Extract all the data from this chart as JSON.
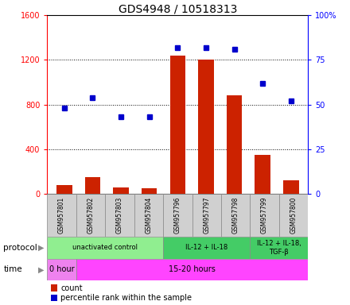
{
  "title": "GDS4948 / 10518313",
  "samples": [
    "GSM957801",
    "GSM957802",
    "GSM957803",
    "GSM957804",
    "GSM957796",
    "GSM957797",
    "GSM957798",
    "GSM957799",
    "GSM957800"
  ],
  "counts": [
    80,
    150,
    60,
    50,
    1240,
    1200,
    880,
    350,
    120
  ],
  "percentile_ranks": [
    48,
    54,
    43,
    43,
    82,
    82,
    81,
    62,
    52
  ],
  "ylim_left": [
    0,
    1600
  ],
  "ylim_right": [
    0,
    100
  ],
  "yticks_left": [
    0,
    400,
    800,
    1200,
    1600
  ],
  "ytick_labels_left": [
    "0",
    "400",
    "800",
    "1200",
    "1600"
  ],
  "yticks_right": [
    0,
    25,
    50,
    75,
    100
  ],
  "ytick_labels_right": [
    "0",
    "25",
    "50",
    "75",
    "100%"
  ],
  "protocol_groups": [
    {
      "label": "unactivated control",
      "start": 0,
      "end": 4,
      "color": "#90EE90"
    },
    {
      "label": "IL-12 + IL-18",
      "start": 4,
      "end": 7,
      "color": "#44CC66"
    },
    {
      "label": "IL-12 + IL-18,\nTGF-β",
      "start": 7,
      "end": 9,
      "color": "#44CC66"
    }
  ],
  "time_groups": [
    {
      "label": "0 hour",
      "start": 0,
      "end": 1,
      "color": "#EE82EE"
    },
    {
      "label": "15-20 hours",
      "start": 1,
      "end": 9,
      "color": "#FF44FF"
    }
  ],
  "bar_color": "#CC2200",
  "dot_color": "#0000CC",
  "legend_count_label": "count",
  "legend_pct_label": "percentile rank within the sample"
}
